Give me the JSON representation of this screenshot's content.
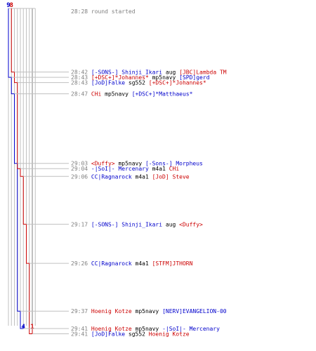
{
  "chart_data": {
    "type": "line",
    "title": "",
    "colors": {
      "blue": "#0000cc",
      "red": "#cc0000",
      "time": "#808080",
      "grid": "#c0c0c0",
      "gridDark": "#808080",
      "text": "#000000"
    },
    "series": [
      {
        "start": 9,
        "end": 4,
        "color": "blue"
      },
      {
        "start": 8,
        "end": 1,
        "color": "red"
      }
    ],
    "events": [
      {
        "time": "28:28",
        "parts": [
          {
            "text": "round started",
            "c": "time"
          }
        ]
      },
      {
        "time": "28:42",
        "killer_team": "blue",
        "parts": [
          {
            "text": "[-SONS-] Shinji_Ikari",
            "c": "blue"
          },
          {
            "text": " aug ",
            "c": "text"
          },
          {
            "text": "[JBC]Lambda TM",
            "c": "red"
          }
        ],
        "blue": 9,
        "red": 7
      },
      {
        "time": "28:43",
        "killer_team": "red",
        "parts": [
          {
            "text": "[+DSC+]*Johannes*",
            "c": "red"
          },
          {
            "text": " mp5navy ",
            "c": "text"
          },
          {
            "text": "[SPD]gerd",
            "c": "blue"
          }
        ],
        "blue": 8,
        "red": 7
      },
      {
        "time": "28:43",
        "killer_team": "blue",
        "parts": [
          {
            "text": "[JoD]Falke",
            "c": "blue"
          },
          {
            "text": " sg552 ",
            "c": "text"
          },
          {
            "text": "[+DSC+]*Johannes*",
            "c": "red"
          }
        ],
        "blue": 8,
        "red": 6
      },
      {
        "time": "28:47",
        "killer_team": "red",
        "parts": [
          {
            "text": "CHi",
            "c": "red"
          },
          {
            "text": " mp5navy ",
            "c": "text"
          },
          {
            "text": "[+DSC+]*Matthaeus*",
            "c": "blue"
          }
        ],
        "blue": 7,
        "red": 6
      },
      {
        "time": "29:03",
        "killer_team": "red",
        "parts": [
          {
            "text": "<Duffy>",
            "c": "red"
          },
          {
            "text": " mp5navy ",
            "c": "text"
          },
          {
            "text": "[-Sons-] Morpheus",
            "c": "blue"
          }
        ],
        "blue": 6,
        "red": 6
      },
      {
        "time": "29:04",
        "killer_team": "blue",
        "parts": [
          {
            "text": "-|SoI|- Mercenary",
            "c": "blue"
          },
          {
            "text": " m4a1 ",
            "c": "text"
          },
          {
            "text": "CHi",
            "c": "red"
          }
        ],
        "blue": 6,
        "red": 5
      },
      {
        "time": "29:06",
        "killer_team": "blue",
        "parts": [
          {
            "text": "CC|Ragnarock",
            "c": "blue"
          },
          {
            "text": " m4a1 ",
            "c": "text"
          },
          {
            "text": "[JoD] Steve",
            "c": "red"
          }
        ],
        "blue": 6,
        "red": 4
      },
      {
        "time": "29:17",
        "killer_team": "blue",
        "parts": [
          {
            "text": "[-SONS-] Shinji_Ikari",
            "c": "blue"
          },
          {
            "text": " aug ",
            "c": "text"
          },
          {
            "text": "<Duffy>",
            "c": "red"
          }
        ],
        "blue": 6,
        "red": 3
      },
      {
        "time": "29:26",
        "killer_team": "blue",
        "parts": [
          {
            "text": "CC|Ragnarock",
            "c": "blue"
          },
          {
            "text": " m4a1 ",
            "c": "text"
          },
          {
            "text": "[STFM]JTHORN",
            "c": "red"
          }
        ],
        "blue": 6,
        "red": 2
      },
      {
        "time": "29:37",
        "killer_team": "red",
        "parts": [
          {
            "text": "Hoenig Kotze",
            "c": "red"
          },
          {
            "text": " mp5navy ",
            "c": "text"
          },
          {
            "text": "[NERV]EVANGELION-00",
            "c": "blue"
          }
        ],
        "blue": 5,
        "red": 2
      },
      {
        "time": "29:41",
        "killer_team": "red",
        "parts": [
          {
            "text": "Hoenig Kotze",
            "c": "red"
          },
          {
            "text": " mp5navy ",
            "c": "text"
          },
          {
            "text": "-|SoI|- Mercenary",
            "c": "blue"
          }
        ],
        "blue": 4,
        "red": 2
      },
      {
        "time": "29:41",
        "killer_team": "blue",
        "parts": [
          {
            "text": "[JoD]Falke",
            "c": "blue"
          },
          {
            "text": " sg552 ",
            "c": "text"
          },
          {
            "text": "Hoenig Kotze",
            "c": "red"
          }
        ],
        "blue": 4,
        "red": 1
      }
    ]
  }
}
